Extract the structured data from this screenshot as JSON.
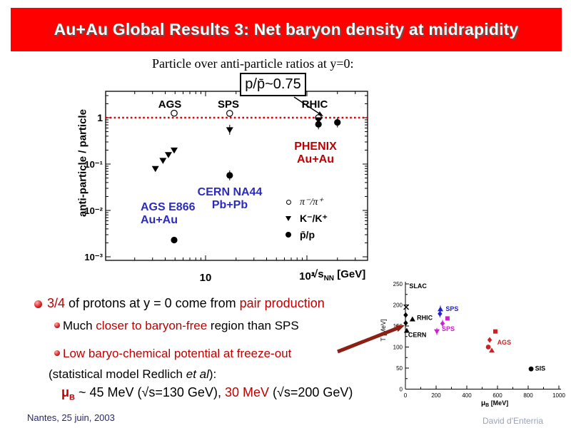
{
  "slide": {
    "title": "Au+Au Global Results 3: Net baryon density at midrapidity",
    "subtitle": "Particle over anti-particle ratios at y=0:",
    "footer_left": "Nantes, 25 juin, 2003",
    "footer_right": "David d'Enterria"
  },
  "colors": {
    "banner_red": "#ff0000",
    "red_text": "#c00000",
    "blue_text": "#2b2bc0",
    "ratio_line": "#dd0000",
    "arrow": "#8b2015",
    "footer_left": "#262673",
    "footer_right": "#9aa4b8"
  },
  "annotation_box": {
    "label": "p/p̄~0.75"
  },
  "main_chart": {
    "ylabel": "anti-particle / particle",
    "xaxis": {
      "sym": "√s",
      "sub": "NN",
      "unit": " [GeV]"
    },
    "yticks": [
      "1",
      "10⁻¹",
      "10⁻²",
      "10⁻³"
    ],
    "xticks": [
      "10",
      "10²"
    ],
    "accel_labels": [
      "AGS",
      "SPS",
      "RHIC"
    ],
    "legend": [
      {
        "symbol": "open-circle",
        "label": "π⁻/π⁺"
      },
      {
        "symbol": "filled-triangle-down",
        "label": "K⁻/K⁺"
      },
      {
        "symbol": "filled-circle",
        "label": "p̄/p"
      }
    ],
    "labels": {
      "phenix_line1": "PHENIX",
      "phenix_line2": "Au+Au",
      "cern_line1": "CERN NA44",
      "cern_line2": "Pb+Pb",
      "ags_line1": "AGS E866",
      "ags_line2": "Au+Au"
    }
  },
  "bullets": {
    "b1": {
      "p1": "3/4",
      "p2": " of protons at y = 0 come from ",
      "p3": "pair production"
    },
    "b2": {
      "p1": "Much ",
      "p2": "closer to baryon-free",
      "p3": " region than SPS"
    },
    "b3": {
      "p1": "Low baryo-chemical potential at freeze-out"
    },
    "stat": {
      "p1": "(statistical model Redlich ",
      "p2": "et al",
      "p3": "):"
    },
    "mu": {
      "sym": "μ",
      "sub": "B",
      "p1": " ~ 45 MeV (√s=130 GeV), ",
      "p2": "30 MeV",
      "p3": " (√s=200 GeV)"
    }
  },
  "chart_data": [
    {
      "type": "scatter",
      "title": "Particle over anti-particle ratios at y=0",
      "xlabel": "√s_NN [GeV]",
      "ylabel": "anti-particle / particle",
      "xscale": "log",
      "yscale": "log",
      "xlim": [
        1,
        400
      ],
      "ylim": [
        0.001,
        3.7
      ],
      "reference_line_y": 1,
      "series": [
        {
          "name": "π⁻/π⁺",
          "marker": "open-circle",
          "color": "#000000",
          "points": [
            {
              "x": 4.9,
              "y": 1.25
            },
            {
              "x": 17.3,
              "y": 1.24
            },
            {
              "x": 130,
              "y": 1.0
            }
          ]
        },
        {
          "name": "K⁻/K⁺",
          "marker": "triangle-down",
          "color": "#000000",
          "points": [
            {
              "x": 3.2,
              "y": 0.08
            },
            {
              "x": 3.8,
              "y": 0.12
            },
            {
              "x": 4.3,
              "y": 0.16
            },
            {
              "x": 4.9,
              "y": 0.2
            },
            {
              "x": 17.3,
              "y": 0.55,
              "e": 1
            },
            {
              "x": 130,
              "y": 0.9
            }
          ]
        },
        {
          "name": "p̄/p",
          "marker": "filled-circle",
          "color": "#000000",
          "points": [
            {
              "x": 4.9,
              "y": 0.0023
            },
            {
              "x": 17.3,
              "y": 0.057,
              "e": 1
            },
            {
              "x": 130,
              "y": 0.72,
              "e": 1
            },
            {
              "x": 200,
              "y": 0.79,
              "e": 1
            }
          ]
        }
      ]
    },
    {
      "type": "scatter",
      "xlabel": "μB [MeV]",
      "ylabel": "T [MeV]",
      "xlim": [
        0,
        1000
      ],
      "ylim": [
        0,
        250
      ],
      "xticks": [
        0,
        200,
        400,
        600,
        800,
        1000
      ],
      "yticks": [
        0,
        50,
        100,
        150,
        200,
        250
      ],
      "points": [
        {
          "x": 5,
          "y": 195,
          "m": "x",
          "c": "#000000",
          "group": "SLAC"
        },
        {
          "x": 2,
          "y": 176,
          "m": "d",
          "c": "#000000"
        },
        {
          "x": 2,
          "y": 157,
          "m": "d",
          "c": "#000000"
        },
        {
          "x": 46,
          "y": 166,
          "m": "tu",
          "c": "#000000",
          "group": "RHIC"
        },
        {
          "x": 9,
          "y": 139,
          "m": "tu",
          "c": "#000000",
          "group": "CERN"
        },
        {
          "x": 228,
          "y": 190,
          "m": "tu",
          "c": "#2222cc",
          "e": 1,
          "group": "SPS"
        },
        {
          "x": 225,
          "y": 179,
          "m": "d",
          "c": "#2222cc",
          "e": 1,
          "group": "SPS"
        },
        {
          "x": 274,
          "y": 168,
          "m": "sq",
          "c": "#cc22cc",
          "group": "SPS"
        },
        {
          "x": 242,
          "y": 156,
          "m": "d",
          "c": "#cc22cc",
          "e": 1,
          "group": "SPS"
        },
        {
          "x": 205,
          "y": 137,
          "m": "td",
          "c": "#cc22cc",
          "e": 1,
          "group": "SPS"
        },
        {
          "x": 586,
          "y": 137,
          "m": "sq",
          "c": "#cc2222",
          "group": "AGS"
        },
        {
          "x": 549,
          "y": 117,
          "m": "d",
          "c": "#cc2222",
          "group": "AGS"
        },
        {
          "x": 540,
          "y": 100,
          "m": "c",
          "c": "#cc2222",
          "group": "AGS"
        },
        {
          "x": 563,
          "y": 92,
          "m": "tu",
          "c": "#cc2222",
          "group": "AGS"
        },
        {
          "x": 819,
          "y": 48,
          "m": "c",
          "c": "#000000",
          "group": "SIS"
        }
      ],
      "labels": [
        {
          "t": "SLAC",
          "x": 25,
          "y": 240,
          "c": "#000000"
        },
        {
          "t": "RHIC",
          "x": 75,
          "y": 164,
          "c": "#000000"
        },
        {
          "t": "CERN",
          "x": 18,
          "y": 124,
          "c": "#000000"
        },
        {
          "t": "SPS",
          "x": 262,
          "y": 186,
          "c": "#2222cc"
        },
        {
          "t": "SPS",
          "x": 237,
          "y": 138,
          "c": "#cc22cc"
        },
        {
          "t": "AGS",
          "x": 598,
          "y": 106,
          "c": "#cc2222"
        },
        {
          "t": "SIS",
          "x": 845,
          "y": 44,
          "c": "#000000"
        }
      ]
    }
  ]
}
